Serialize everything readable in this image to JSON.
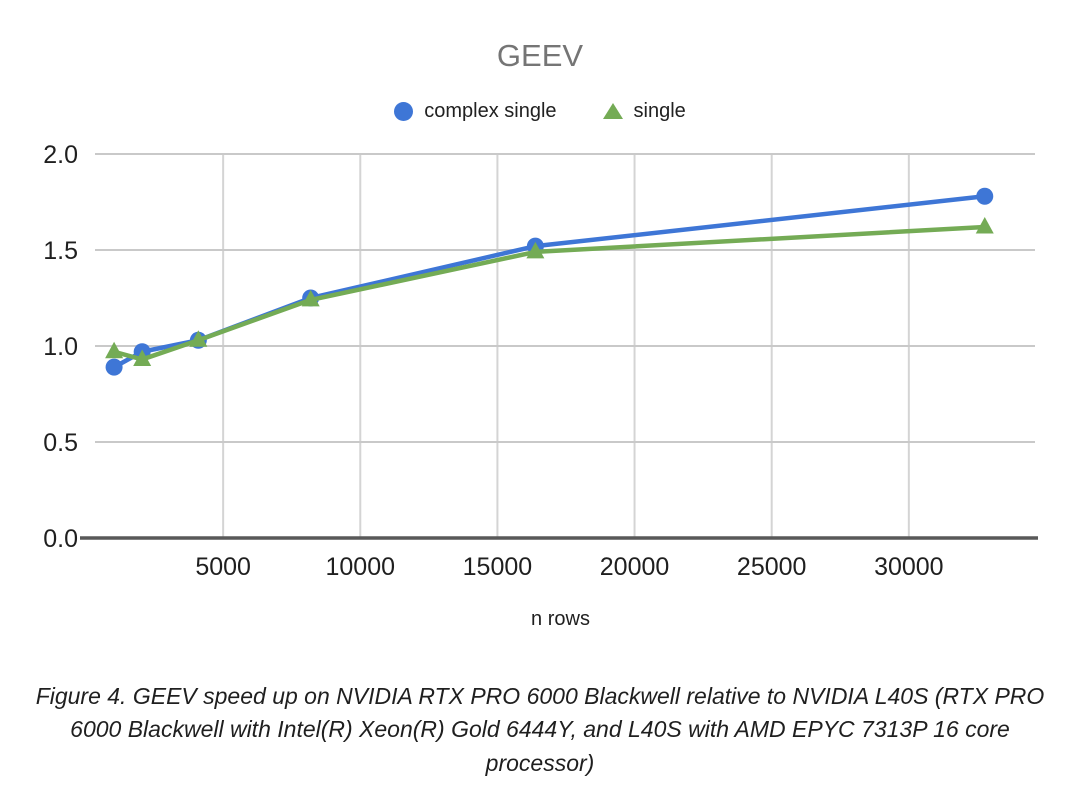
{
  "chart_data": {
    "type": "line",
    "title": "GEEV",
    "xlabel": "n rows",
    "ylabel": "",
    "x": [
      1024,
      2048,
      4096,
      8192,
      16384,
      32768
    ],
    "series": [
      {
        "name": "complex single",
        "marker": "circle",
        "color": "#3e76d6",
        "values": [
          0.89,
          0.97,
          1.03,
          1.25,
          1.52,
          1.78
        ]
      },
      {
        "name": "single",
        "marker": "triangle",
        "color": "#74ab55",
        "values": [
          0.97,
          0.93,
          1.03,
          1.24,
          1.49,
          1.62
        ]
      }
    ],
    "xlim": [
      0,
      34600
    ],
    "ylim": [
      0,
      2
    ],
    "xticks": [
      5000,
      10000,
      15000,
      20000,
      25000,
      30000
    ],
    "yticks": [
      0,
      0.5,
      1,
      1.5,
      2
    ],
    "grid": true,
    "legend_position": "top",
    "colors": {
      "title_text": "#757575",
      "legend_text": "#212121",
      "tick_label": "#1f1f1f",
      "gridline": "#c9c9c9",
      "vertical_gridline": "#d4d4d4",
      "axis_line": "#595959",
      "background": "#ffffff"
    }
  },
  "caption": {
    "text": "Figure 4. GEEV speed up on NVIDIA RTX PRO 6000 Blackwell relative to NVIDIA L40S (RTX PRO 6000 Blackwell with Intel(R) Xeon(R) Gold 6444Y, and L40S with AMD EPYC 7313P 16 core processor)"
  }
}
